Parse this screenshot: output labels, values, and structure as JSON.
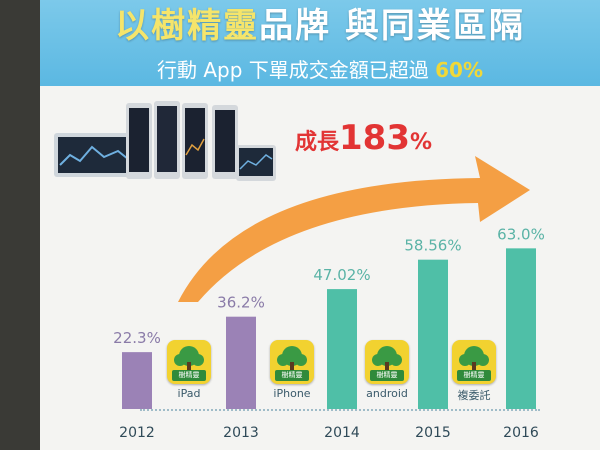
{
  "slide": {
    "title_part1": "以樹精靈",
    "title_part2": "品牌  與同業區隔",
    "subtitle_text": "行動 App 下單成交金額已超過 ",
    "subtitle_value": "60%",
    "growth_label": "成長",
    "growth_value": "183",
    "growth_unit": "%"
  },
  "icons": [
    {
      "brand": "樹精靈",
      "caption": "iPad"
    },
    {
      "brand": "樹精靈",
      "caption": "iPhone"
    },
    {
      "brand": "樹精靈",
      "caption": "android"
    },
    {
      "brand": "樹精靈",
      "caption": "複委託"
    }
  ],
  "colors": {
    "bar_2012_2013": "#9b82b6",
    "bar_2014_2016": "#4fbfa7",
    "label_2012_2013": "#8a7ba8",
    "label_2014_2016": "#5ab3a6",
    "arrow": "#f39a3a",
    "growth_text": "#e23434",
    "banner": "#5bb8e2"
  },
  "chart_data": {
    "type": "bar",
    "categories": [
      "2012",
      "2013",
      "2014",
      "2015",
      "2016"
    ],
    "values": [
      22.3,
      36.2,
      47.02,
      58.56,
      63.0
    ],
    "data_labels": [
      "22.3%",
      "36.2%",
      "47.02%",
      "58.56%",
      "63.0%"
    ],
    "ylim": [
      0,
      70
    ],
    "grid": false,
    "legend": "none",
    "annotation": "成長183%"
  }
}
